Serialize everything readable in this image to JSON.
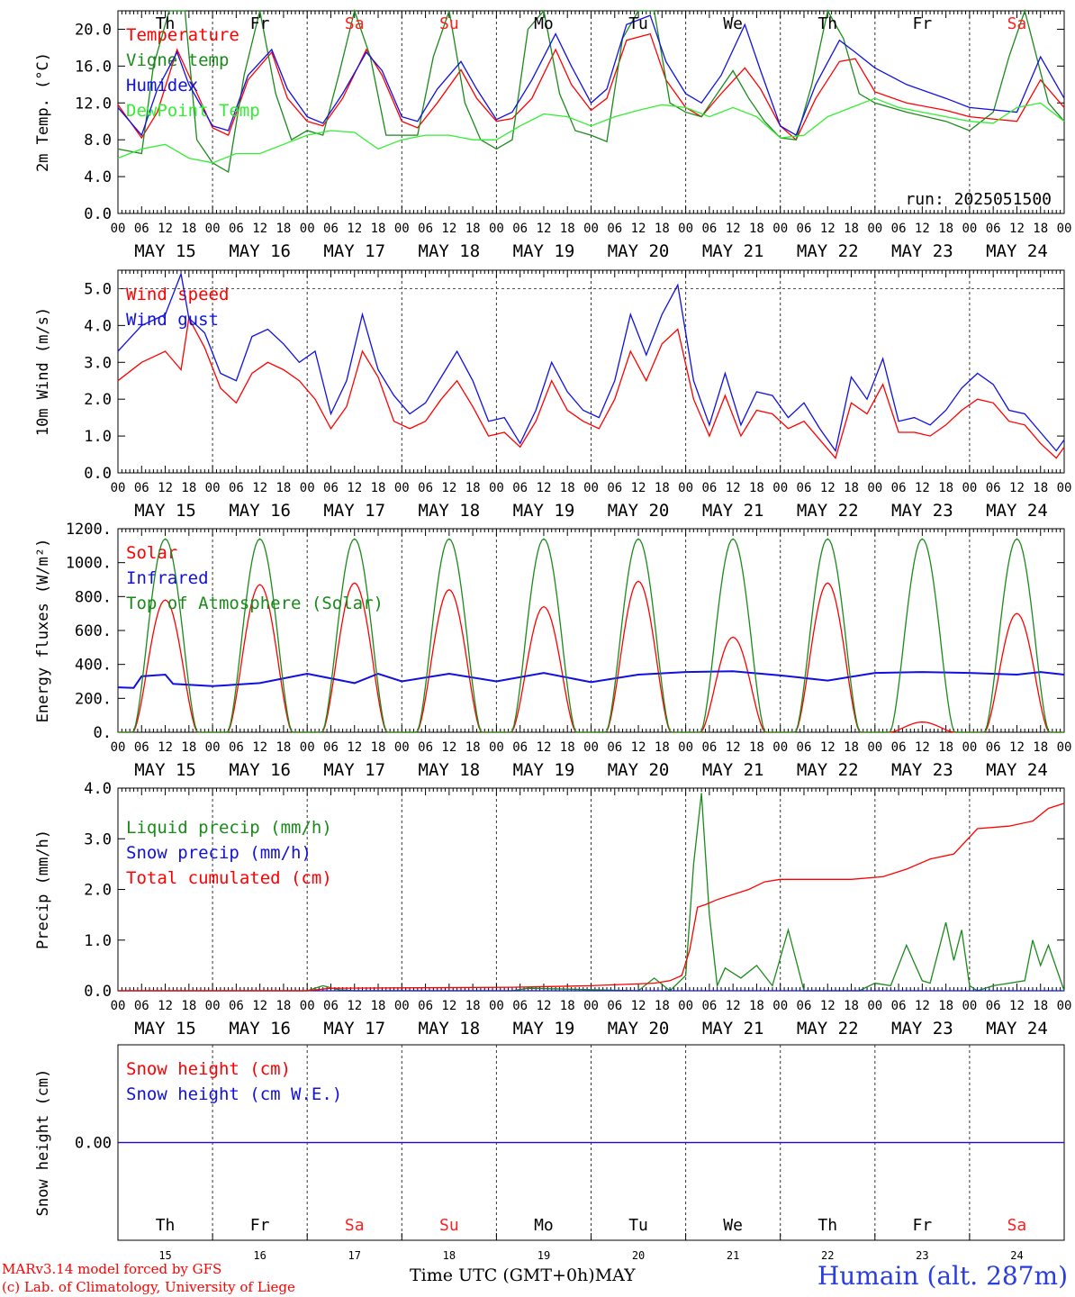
{
  "footer": {
    "credit_line1": "MARv3.14 model forced by GFS",
    "credit_line2": "(c) Lab. of Climatology, University of Liege",
    "xlabel": "Time UTC (GMT+0h)",
    "month": "MAY",
    "station": "Humain (alt. 287m)"
  },
  "run_label": "run: 2025051500",
  "days": [
    {
      "abbr": "Th",
      "date": "MAY 15",
      "num": "15",
      "weekend": false
    },
    {
      "abbr": "Fr",
      "date": "MAY 16",
      "num": "16",
      "weekend": false
    },
    {
      "abbr": "Sa",
      "date": "MAY 17",
      "num": "17",
      "weekend": true
    },
    {
      "abbr": "Su",
      "date": "MAY 18",
      "num": "18",
      "weekend": true
    },
    {
      "abbr": "Mo",
      "date": "MAY 19",
      "num": "19",
      "weekend": false
    },
    {
      "abbr": "Tu",
      "date": "MAY 20",
      "num": "20",
      "weekend": false
    },
    {
      "abbr": "We",
      "date": "MAY 21",
      "num": "21",
      "weekend": false
    },
    {
      "abbr": "Th",
      "date": "MAY 22",
      "num": "22",
      "weekend": false
    },
    {
      "abbr": "Fr",
      "date": "MAY 23",
      "num": "23",
      "weekend": false
    },
    {
      "abbr": "Sa",
      "date": "MAY 24",
      "num": "24",
      "weekend": true
    }
  ],
  "hour_ticks": [
    "00",
    "06",
    "12",
    "18"
  ],
  "colors": {
    "red": "#ff0000",
    "dark_green": "#1a8a1a",
    "blue": "#1010e0",
    "light_green": "#33ee33",
    "weekend": "#ff2020"
  },
  "chart_data": [
    {
      "type": "line",
      "ylabel": "2m Temp. (°C)",
      "ylim": [
        0,
        22
      ],
      "yticks": [
        0,
        4,
        8,
        12,
        16,
        20
      ],
      "ytick_labels": [
        "0.0",
        "4.0",
        "8.0",
        "12.0",
        "16.0",
        "20.0"
      ],
      "x_unit": "hours since MAY 15 00 UTC",
      "xlim": [
        0,
        240
      ],
      "series": [
        {
          "name": "Temperature",
          "color": "#ff0000",
          "x": [
            0,
            6,
            10,
            15,
            18,
            24,
            28,
            33,
            39,
            43,
            48,
            52,
            57,
            63,
            67,
            72,
            76,
            81,
            87,
            91,
            96,
            100,
            105,
            111,
            115,
            120,
            124,
            129,
            135,
            139,
            144,
            148,
            153,
            159,
            163,
            168,
            172,
            177,
            183,
            187,
            192,
            200,
            210,
            216,
            228,
            234,
            240
          ],
          "y": [
            11.8,
            8.2,
            11.0,
            17.8,
            15.0,
            9.3,
            8.5,
            14.5,
            17.5,
            12.5,
            10.0,
            9.5,
            12.5,
            17.8,
            15.0,
            10.0,
            9.3,
            12.0,
            15.6,
            12.5,
            10.0,
            10.3,
            12.5,
            17.8,
            14.0,
            11.2,
            12.5,
            18.8,
            19.5,
            14.5,
            11.5,
            10.5,
            13.0,
            15.8,
            13.5,
            9.5,
            8.0,
            12.5,
            16.5,
            16.8,
            13.2,
            12.0,
            11.2,
            10.5,
            10.0,
            14.5,
            11.5
          ]
        },
        {
          "name": "Vigne temp",
          "color": "#1a8a1a",
          "x": [
            0,
            6,
            9,
            13,
            17,
            20,
            24,
            28,
            32,
            36,
            40,
            44,
            48,
            52,
            56,
            60,
            64,
            68,
            72,
            76,
            80,
            84,
            88,
            92,
            96,
            100,
            104,
            108,
            112,
            116,
            120,
            124,
            128,
            132,
            136,
            140,
            144,
            148,
            152,
            156,
            160,
            164,
            168,
            172,
            176,
            180,
            184,
            188,
            192,
            200,
            210,
            216,
            222,
            226,
            230,
            236,
            240
          ],
          "y": [
            7.0,
            6.5,
            16.0,
            22.0,
            22.0,
            8.0,
            5.5,
            4.5,
            15.0,
            22.0,
            13.0,
            8.0,
            9.0,
            8.5,
            15.0,
            22.0,
            17.0,
            8.5,
            8.5,
            8.5,
            17.0,
            22.0,
            12.0,
            8.0,
            7.0,
            8.0,
            20.0,
            22.0,
            13.0,
            9.0,
            8.5,
            7.8,
            19.0,
            22.0,
            22.0,
            12.0,
            11.0,
            10.5,
            13.0,
            15.5,
            12.5,
            10.0,
            8.2,
            8.0,
            14.0,
            22.0,
            19.0,
            13.0,
            12.0,
            11.0,
            10.0,
            9.0,
            11.0,
            17.0,
            22.0,
            12.0,
            10.0
          ]
        },
        {
          "name": "Humidex",
          "color": "#1010e0",
          "x": [
            0,
            6,
            10,
            15,
            18,
            24,
            28,
            33,
            39,
            43,
            48,
            52,
            57,
            63,
            67,
            72,
            76,
            81,
            87,
            91,
            96,
            100,
            105,
            111,
            115,
            120,
            124,
            129,
            135,
            139,
            144,
            148,
            153,
            159,
            163,
            168,
            172,
            177,
            183,
            187,
            192,
            200,
            210,
            216,
            228,
            234,
            240
          ],
          "y": [
            11.5,
            8.5,
            13.5,
            17.5,
            14.0,
            9.5,
            9.0,
            15.0,
            17.8,
            13.5,
            10.5,
            9.8,
            13.0,
            17.5,
            15.5,
            10.5,
            10.0,
            13.5,
            16.5,
            13.5,
            10.2,
            11.0,
            14.5,
            19.5,
            16.0,
            12.0,
            13.5,
            20.5,
            21.5,
            16.5,
            13.0,
            12.0,
            15.0,
            20.5,
            15.5,
            9.5,
            8.5,
            14.0,
            18.8,
            17.5,
            15.8,
            14.0,
            12.5,
            11.5,
            11.0,
            17.0,
            12.5
          ]
        },
        {
          "name": "DewPoint Temp",
          "color": "#33ee33",
          "x": [
            0,
            6,
            12,
            18,
            24,
            30,
            36,
            42,
            48,
            54,
            60,
            66,
            72,
            78,
            84,
            90,
            96,
            102,
            108,
            114,
            120,
            126,
            132,
            138,
            144,
            150,
            156,
            162,
            168,
            174,
            180,
            186,
            192,
            198,
            204,
            210,
            216,
            222,
            228,
            234,
            240
          ],
          "y": [
            6.0,
            7.0,
            7.5,
            6.0,
            5.5,
            6.5,
            6.5,
            7.5,
            8.5,
            9.0,
            8.8,
            7.0,
            8.0,
            8.5,
            8.5,
            8.0,
            8.0,
            9.5,
            10.8,
            10.5,
            9.5,
            10.5,
            11.2,
            11.8,
            11.5,
            10.5,
            11.5,
            10.5,
            8.2,
            8.5,
            10.5,
            11.5,
            12.5,
            11.5,
            11.0,
            10.5,
            10.0,
            9.8,
            11.5,
            12.0,
            10.0
          ]
        }
      ]
    },
    {
      "type": "line",
      "ylabel": "10m Wind (m/s)",
      "ylim": [
        0,
        5.5
      ],
      "yticks": [
        0,
        1,
        2,
        3,
        4,
        5
      ],
      "ytick_labels": [
        "0.0",
        "1.0",
        "2.0",
        "3.0",
        "4.0",
        "5.0"
      ],
      "xlim": [
        0,
        240
      ],
      "series": [
        {
          "name": "Wind speed",
          "color": "#ff0000",
          "x": [
            0,
            6,
            12,
            16,
            18,
            22,
            26,
            30,
            34,
            38,
            42,
            46,
            50,
            54,
            58,
            62,
            66,
            70,
            74,
            78,
            82,
            86,
            90,
            94,
            98,
            102,
            106,
            110,
            114,
            118,
            122,
            126,
            130,
            134,
            138,
            142,
            146,
            150,
            154,
            158,
            162,
            166,
            170,
            174,
            178,
            182,
            186,
            190,
            194,
            198,
            202,
            206,
            210,
            214,
            218,
            222,
            226,
            230,
            234,
            238,
            240
          ],
          "y": [
            2.5,
            3.0,
            3.3,
            2.8,
            4.2,
            3.4,
            2.3,
            1.9,
            2.7,
            3.0,
            2.8,
            2.5,
            2.0,
            1.2,
            1.8,
            3.3,
            2.6,
            1.4,
            1.2,
            1.4,
            2.0,
            2.5,
            1.8,
            1.0,
            1.1,
            0.7,
            1.4,
            2.5,
            1.7,
            1.4,
            1.2,
            2.0,
            3.3,
            2.5,
            3.5,
            3.9,
            2.0,
            1.0,
            2.1,
            1.0,
            1.7,
            1.6,
            1.2,
            1.4,
            0.9,
            0.4,
            1.9,
            1.6,
            2.4,
            1.1,
            1.1,
            1.0,
            1.3,
            1.7,
            2.0,
            1.9,
            1.4,
            1.3,
            0.8,
            0.4,
            0.7
          ]
        },
        {
          "name": "Wind gust",
          "color": "#1010e0",
          "x": [
            0,
            6,
            12,
            16,
            18,
            22,
            26,
            30,
            34,
            38,
            42,
            46,
            50,
            54,
            58,
            62,
            66,
            70,
            74,
            78,
            82,
            86,
            90,
            94,
            98,
            102,
            106,
            110,
            114,
            118,
            122,
            126,
            130,
            134,
            138,
            142,
            146,
            150,
            154,
            158,
            162,
            166,
            170,
            174,
            178,
            182,
            186,
            190,
            194,
            198,
            202,
            206,
            210,
            214,
            218,
            222,
            226,
            230,
            234,
            238,
            240
          ],
          "y": [
            3.3,
            4.0,
            4.3,
            5.4,
            4.2,
            3.8,
            2.7,
            2.5,
            3.7,
            3.9,
            3.5,
            3.0,
            3.3,
            1.6,
            2.5,
            4.3,
            2.8,
            2.1,
            1.6,
            1.9,
            2.6,
            3.3,
            2.5,
            1.4,
            1.5,
            0.8,
            1.7,
            3.0,
            2.2,
            1.7,
            1.5,
            2.5,
            4.3,
            3.2,
            4.3,
            5.1,
            2.5,
            1.3,
            2.7,
            1.3,
            2.2,
            2.1,
            1.5,
            1.9,
            1.2,
            0.6,
            2.6,
            2.0,
            3.1,
            1.4,
            1.5,
            1.3,
            1.7,
            2.3,
            2.7,
            2.4,
            1.7,
            1.6,
            1.1,
            0.6,
            0.9
          ]
        }
      ]
    },
    {
      "type": "line",
      "ylabel": "Energy fluxes (W/m²)",
      "ylim": [
        0,
        1200
      ],
      "yticks": [
        0,
        200,
        400,
        600,
        800,
        1000,
        1200
      ],
      "ytick_labels": [
        "0.",
        "200.",
        "400.",
        "600.",
        "800.",
        "1000.",
        "1200."
      ],
      "xlim": [
        0,
        240
      ],
      "series": [
        {
          "name": "Solar",
          "color": "#ff0000",
          "peaks": [
            780,
            870,
            880,
            840,
            740,
            890,
            560,
            880,
            60,
            700
          ]
        },
        {
          "name": "Infrared",
          "color": "#1010e0",
          "x": [
            0,
            4,
            6,
            12,
            14,
            24,
            36,
            48,
            60,
            66,
            72,
            84,
            96,
            108,
            120,
            132,
            144,
            156,
            168,
            180,
            192,
            204,
            216,
            228,
            234,
            240
          ],
          "y": [
            265,
            262,
            330,
            340,
            285,
            272,
            290,
            345,
            290,
            345,
            300,
            345,
            300,
            350,
            295,
            340,
            355,
            360,
            335,
            305,
            350,
            355,
            350,
            340,
            355,
            340
          ]
        },
        {
          "name": "Top of Atmosphere (Solar)",
          "color": "#1a8a1a",
          "peak": 1140
        }
      ]
    },
    {
      "type": "line",
      "ylabel": "Precip (mm/h)",
      "ylim": [
        0,
        4
      ],
      "yticks": [
        0,
        1,
        2,
        3,
        4
      ],
      "ytick_labels": [
        "0.0",
        "1.0",
        "2.0",
        "3.0",
        "4.0"
      ],
      "xlim": [
        0,
        240
      ],
      "series": [
        {
          "name": "Liquid precip (mm/h)",
          "color": "#1a8a1a",
          "x": [
            0,
            48,
            52,
            56,
            60,
            100,
            104,
            132,
            136,
            140,
            144,
            146,
            148,
            150,
            152,
            154,
            158,
            162,
            166,
            170,
            174,
            178,
            182,
            188,
            192,
            196,
            200,
            204,
            206,
            210,
            212,
            214,
            216,
            218,
            222,
            226,
            230,
            232,
            234,
            236,
            240
          ],
          "y": [
            0,
            0,
            0.1,
            0.02,
            0,
            0,
            0.05,
            0,
            0.25,
            0,
            0.3,
            2.5,
            3.9,
            1.5,
            0.1,
            0.45,
            0.25,
            0.5,
            0.1,
            1.2,
            0,
            0,
            0,
            0,
            0.15,
            0.1,
            0.9,
            0.2,
            0.15,
            1.35,
            0.6,
            1.2,
            0.1,
            0,
            0.1,
            0.15,
            0.2,
            1.0,
            0.5,
            0.9,
            0
          ]
        },
        {
          "name": "Snow precip (mm/h)",
          "color": "#1010e0",
          "x": [
            0,
            240
          ],
          "y": [
            0,
            0
          ]
        },
        {
          "name": "Total cumulated (cm)",
          "color": "#ff0000",
          "x": [
            0,
            48,
            54,
            100,
            120,
            136,
            140,
            143,
            145,
            147,
            149,
            152,
            156,
            160,
            164,
            168,
            176,
            186,
            194,
            200,
            206,
            212,
            218,
            226,
            232,
            236,
            240
          ],
          "y": [
            0,
            0,
            0.05,
            0.07,
            0.1,
            0.15,
            0.2,
            0.3,
            0.8,
            1.65,
            1.7,
            1.8,
            1.9,
            2.0,
            2.15,
            2.2,
            2.2,
            2.2,
            2.25,
            2.4,
            2.6,
            2.7,
            3.2,
            3.25,
            3.35,
            3.6,
            3.7
          ]
        }
      ]
    },
    {
      "type": "line",
      "ylabel": "Snow height (cm)",
      "yticks": [
        0
      ],
      "ytick_labels": [
        "0.00"
      ],
      "xlim": [
        0,
        240
      ],
      "series": [
        {
          "name": "Snow height (cm)",
          "color": "#ff0000",
          "x": [
            0,
            240
          ],
          "y": [
            0,
            0
          ]
        },
        {
          "name": "Snow height (cm W.E.)",
          "color": "#1010e0",
          "x": [
            0,
            240
          ],
          "y": [
            0,
            0
          ]
        }
      ]
    }
  ]
}
